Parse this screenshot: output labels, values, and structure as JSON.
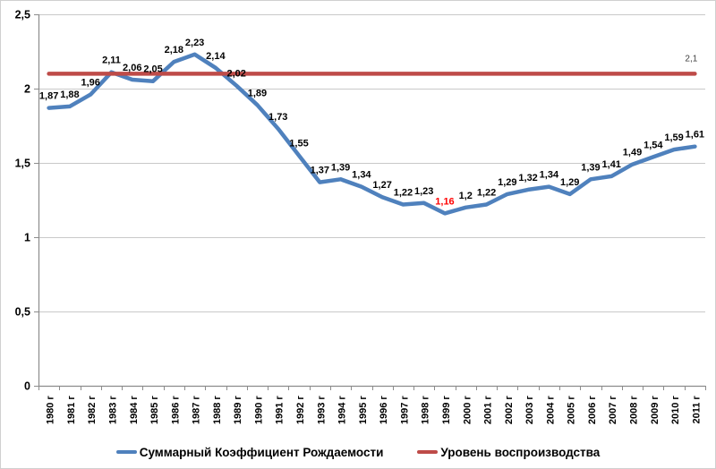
{
  "chart_data": {
    "type": "line",
    "title": "",
    "categories": [
      "1980 г",
      "1981 г",
      "1982 г",
      "1983 г",
      "1984 г",
      "1985 г",
      "1986 г",
      "1987 г",
      "1988 г",
      "1989 г",
      "1990 г",
      "1991 г",
      "1992 г",
      "1993 г",
      "1994 г",
      "1995 г",
      "1996 г",
      "1997 г",
      "1998 г",
      "1999 г",
      "2000 г",
      "2001 г",
      "2002 г",
      "2003 г",
      "2004 г",
      "2005 г",
      "2006 г",
      "2007 г",
      "2008 г",
      "2009 г",
      "2010 г",
      "2011 г"
    ],
    "series": [
      {
        "name": "Суммарный Коэффициент Рождаемости",
        "color": "#4f81bd",
        "values": [
          1.87,
          1.88,
          1.96,
          2.11,
          2.06,
          2.05,
          2.18,
          2.23,
          2.14,
          2.02,
          1.89,
          1.73,
          1.55,
          1.37,
          1.39,
          1.34,
          1.27,
          1.22,
          1.23,
          1.16,
          1.2,
          1.22,
          1.29,
          1.32,
          1.34,
          1.29,
          1.39,
          1.41,
          1.49,
          1.54,
          1.59,
          1.61
        ],
        "labels": [
          "1,87",
          "1,88",
          "1,96",
          "2,11",
          "2,06",
          "2,05",
          "2,18",
          "2,23",
          "2,14",
          "2,02",
          "1,89",
          "1,73",
          "1,55",
          "1,37",
          "1,39",
          "1,34",
          "1,27",
          "1,22",
          "1,23",
          "1,16",
          "1,2",
          "1,22",
          "1,29",
          "1,32",
          "1,34",
          "1,29",
          "1,39",
          "1,41",
          "1,49",
          "1,54",
          "1,59",
          "1,61"
        ],
        "highlight_label_index": 19,
        "highlight_label_color": "#ff0000"
      },
      {
        "name": "Уровень воспроизводства",
        "color": "#be4b48",
        "value": 2.1,
        "label": "2,1",
        "label_color": "#404040"
      }
    ],
    "ylim": [
      0,
      2.5
    ],
    "ytick_interval": 0.5,
    "ytick_labels": [
      "0",
      "0,5",
      "1",
      "1,5",
      "2",
      "2,5"
    ],
    "grid": true,
    "legend_position": "bottom",
    "axis_color": "#8c8c8c",
    "gridline_color": "#c9c9c9",
    "data_label_color": "#000000"
  }
}
